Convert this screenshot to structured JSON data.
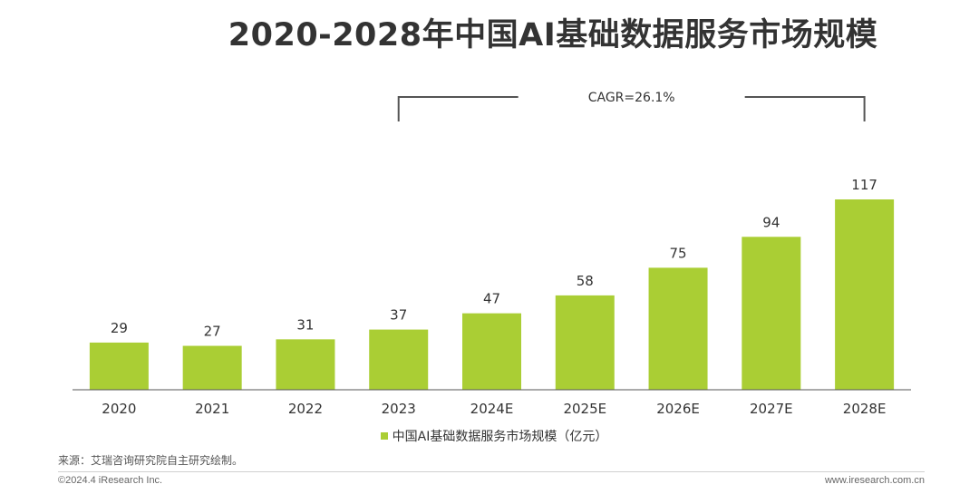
{
  "title": "2020-2028年中国AI基础数据服务市场规模",
  "cagr_label": "CAGR=26.1%",
  "legend_label": "中国AI基础数据服务市场规模（亿元）",
  "source": "来源：艾瑞咨询研究院自主研究绘制。",
  "copyright": "©2024.4 iResearch Inc.",
  "website": "www.iresearch.com.cn",
  "colors": {
    "bar": "#aace34",
    "axis": "#555555"
  },
  "chart_data": {
    "type": "bar",
    "categories": [
      "2020",
      "2021",
      "2022",
      "2023",
      "2024E",
      "2025E",
      "2026E",
      "2027E",
      "2028E"
    ],
    "series": [
      {
        "name": "中国AI基础数据服务市场规模（亿元）",
        "values": [
          29,
          27,
          31,
          37,
          47,
          58,
          75,
          94,
          117
        ]
      }
    ],
    "annotation": {
      "text": "CAGR=26.1%",
      "from": "2023",
      "to": "2028E"
    }
  }
}
